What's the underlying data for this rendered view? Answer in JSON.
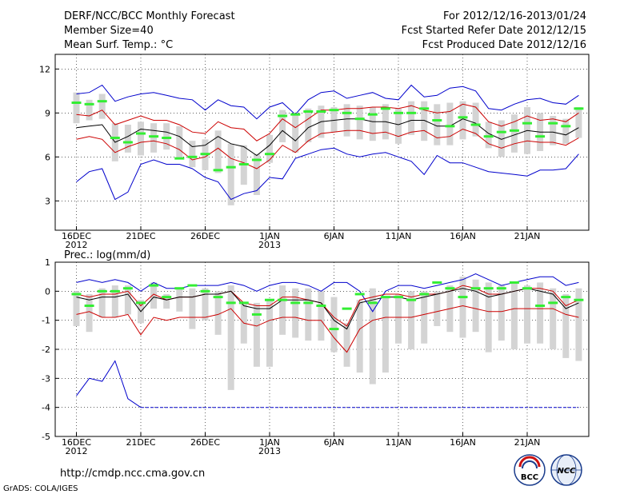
{
  "header": {
    "title": "DERF/NCC/BCC Monthly Forecast",
    "member_size": "Member Size=40",
    "variable": "Mean Surf. Temp.: °C",
    "period": "For 2012/12/16-2013/01/24",
    "started": "Fcst Started Refer Date 2012/12/15",
    "produced": "Fcst Produced Date 2012/12/16"
  },
  "footer": {
    "url": "http://cmdp.ncc.cma.gov.cn",
    "credit": "GrADS: COLA/IGES",
    "logo_bcc": "BCC",
    "logo_ncc": "NCC"
  },
  "colors": {
    "bounds": "#0000cc",
    "spread": "#cc0000",
    "mean": "#000000",
    "median": "#33ee33",
    "box": "#d4d4d4"
  },
  "chart_data": [
    {
      "type": "box-plume",
      "title": "Mean Surf. Temp.: °C",
      "ylim": [
        1,
        13
      ],
      "yticks": [
        3,
        6,
        9,
        12
      ],
      "x_tick_labels": [
        "16DEC",
        "21DEC",
        "26DEC",
        "1JAN",
        "6JAN",
        "11JAN",
        "16JAN",
        "21JAN"
      ],
      "x_tick_sublabels": [
        "2012",
        "",
        "",
        "2013",
        "",
        "",
        "",
        ""
      ],
      "n_days": 40,
      "series": [
        {
          "name": "max",
          "values": [
            10.3,
            10.4,
            10.9,
            9.8,
            10.1,
            10.3,
            10.4,
            10.2,
            10.0,
            9.9,
            9.2,
            9.9,
            9.5,
            9.4,
            8.6,
            9.4,
            9.7,
            8.9,
            9.9,
            10.4,
            10.5,
            10.0,
            10.2,
            10.4,
            10.0,
            9.9,
            10.9,
            10.1,
            10.2,
            10.7,
            10.8,
            10.5,
            9.3,
            9.2,
            9.6,
            9.9,
            10.0,
            9.7,
            9.6,
            10.2
          ]
        },
        {
          "name": "upper",
          "values": [
            8.9,
            8.8,
            9.2,
            8.2,
            8.5,
            8.8,
            8.5,
            8.5,
            8.2,
            7.7,
            7.6,
            8.4,
            8.0,
            7.9,
            7.1,
            7.6,
            8.6,
            8.0,
            8.6,
            9.2,
            9.2,
            9.3,
            9.3,
            9.4,
            9.4,
            9.3,
            9.5,
            9.2,
            9.0,
            9.1,
            9.6,
            9.4,
            8.4,
            8.1,
            8.4,
            8.8,
            8.5,
            8.6,
            8.4,
            9.0
          ]
        },
        {
          "name": "mean",
          "values": [
            8.0,
            8.1,
            8.2,
            7.0,
            7.4,
            7.9,
            7.8,
            7.7,
            7.4,
            6.7,
            6.8,
            7.4,
            6.9,
            6.7,
            6.1,
            6.8,
            7.8,
            7.1,
            8.0,
            8.4,
            8.5,
            8.6,
            8.6,
            8.4,
            8.4,
            8.2,
            8.5,
            8.5,
            8.1,
            8.1,
            8.6,
            8.3,
            7.6,
            7.2,
            7.5,
            7.8,
            7.7,
            7.7,
            7.5,
            8.0
          ]
        },
        {
          "name": "lower",
          "values": [
            7.2,
            7.4,
            7.2,
            6.3,
            6.7,
            7.0,
            7.1,
            6.9,
            6.5,
            5.8,
            6.0,
            6.6,
            5.9,
            5.6,
            5.2,
            5.8,
            6.8,
            6.3,
            7.1,
            7.6,
            7.7,
            7.8,
            7.8,
            7.6,
            7.7,
            7.4,
            7.7,
            7.8,
            7.3,
            7.4,
            7.9,
            7.6,
            6.9,
            6.6,
            6.9,
            7.1,
            7.0,
            7.0,
            6.8,
            7.3
          ]
        },
        {
          "name": "min",
          "values": [
            4.3,
            5.0,
            5.2,
            3.1,
            3.6,
            5.5,
            5.8,
            5.5,
            5.5,
            5.2,
            4.6,
            4.3,
            3.1,
            3.5,
            3.7,
            4.6,
            4.5,
            5.9,
            6.2,
            6.5,
            6.6,
            6.2,
            6.0,
            6.2,
            6.3,
            6.0,
            5.7,
            4.8,
            6.1,
            5.6,
            5.6,
            5.3,
            5.0,
            4.9,
            4.8,
            4.7,
            5.1,
            5.1,
            5.2,
            6.2
          ]
        }
      ],
      "boxes": [
        [
          8.3,
          10.4
        ],
        [
          8.5,
          9.9
        ],
        [
          8.6,
          10.3
        ],
        [
          5.7,
          8.3
        ],
        [
          6.3,
          8.2
        ],
        [
          6.1,
          8.4
        ],
        [
          6.3,
          8.3
        ],
        [
          6.5,
          8.3
        ],
        [
          5.9,
          8.1
        ],
        [
          5.3,
          7.1
        ],
        [
          5.1,
          7.2
        ],
        [
          4.9,
          7.8
        ],
        [
          2.7,
          6.9
        ],
        [
          4.1,
          6.8
        ],
        [
          3.4,
          6.2
        ],
        [
          5.6,
          7.5
        ],
        [
          7.0,
          9.2
        ],
        [
          6.3,
          8.9
        ],
        [
          7.0,
          9.3
        ],
        [
          7.3,
          9.5
        ],
        [
          7.7,
          9.4
        ],
        [
          7.4,
          9.6
        ],
        [
          7.2,
          9.5
        ],
        [
          7.1,
          9.4
        ],
        [
          7.2,
          9.6
        ],
        [
          6.9,
          9.3
        ],
        [
          7.5,
          9.8
        ],
        [
          7.1,
          9.8
        ],
        [
          6.8,
          9.6
        ],
        [
          6.8,
          9.7
        ],
        [
          7.2,
          9.8
        ],
        [
          7.4,
          9.7
        ],
        [
          6.6,
          8.4
        ],
        [
          6.0,
          8.5
        ],
        [
          6.3,
          8.9
        ],
        [
          6.2,
          9.4
        ],
        [
          6.4,
          9.0
        ],
        [
          6.8,
          8.8
        ],
        [
          6.9,
          8.6
        ],
        [
          7.3,
          9.4
        ]
      ],
      "medians": [
        9.7,
        9.6,
        9.8,
        7.3,
        7.0,
        7.6,
        7.4,
        7.3,
        5.9,
        6.0,
        6.2,
        5.1,
        5.3,
        5.5,
        5.8,
        6.2,
        8.8,
        8.9,
        9.1,
        9.1,
        9.2,
        9.0,
        8.6,
        8.9,
        9.3,
        9.0,
        9.0,
        9.3,
        8.5,
        8.1,
        8.7,
        8.2,
        7.4,
        7.7,
        7.8,
        8.3,
        7.4,
        8.3,
        8.1,
        9.3
      ]
    },
    {
      "type": "box-plume",
      "title": "Prec.: log(mm/d)",
      "ylim": [
        -5,
        1
      ],
      "yticks": [
        -5,
        -4,
        -3,
        -2,
        -1,
        0,
        1
      ],
      "x_tick_labels": [
        "16DEC",
        "21DEC",
        "26DEC",
        "1JAN",
        "6JAN",
        "11JAN",
        "16JAN",
        "21JAN"
      ],
      "x_tick_sublabels": [
        "2012",
        "",
        "",
        "2013",
        "",
        "",
        "",
        ""
      ],
      "n_days": 40,
      "series": [
        {
          "name": "max",
          "values": [
            0.3,
            0.4,
            0.3,
            0.4,
            0.3,
            0.0,
            0.3,
            0.1,
            0.1,
            0.2,
            0.2,
            0.2,
            0.3,
            0.2,
            0.0,
            0.2,
            0.3,
            0.3,
            0.2,
            0.0,
            0.3,
            0.3,
            0.0,
            -0.7,
            0.0,
            0.2,
            0.2,
            0.1,
            0.2,
            0.3,
            0.4,
            0.6,
            0.4,
            0.2,
            0.3,
            0.4,
            0.5,
            0.5,
            0.2,
            0.3
          ]
        },
        {
          "name": "upper",
          "values": [
            -0.1,
            -0.2,
            -0.1,
            -0.1,
            0.0,
            -0.5,
            -0.1,
            -0.3,
            -0.2,
            -0.2,
            -0.1,
            -0.1,
            0.0,
            -0.4,
            -0.5,
            -0.5,
            -0.2,
            -0.2,
            -0.3,
            -0.4,
            -0.9,
            -1.2,
            -0.3,
            -0.2,
            -0.1,
            -0.1,
            -0.2,
            -0.1,
            -0.1,
            0.0,
            0.2,
            0.1,
            -0.1,
            -0.1,
            0.0,
            0.1,
            0.1,
            0.0,
            -0.5,
            -0.3
          ]
        },
        {
          "name": "mean",
          "values": [
            -0.2,
            -0.3,
            -0.2,
            -0.2,
            -0.1,
            -0.7,
            -0.2,
            -0.3,
            -0.2,
            -0.2,
            -0.1,
            -0.1,
            0.0,
            -0.5,
            -0.6,
            -0.6,
            -0.3,
            -0.3,
            -0.3,
            -0.4,
            -1.0,
            -1.3,
            -0.4,
            -0.3,
            -0.2,
            -0.2,
            -0.3,
            -0.2,
            -0.1,
            0.0,
            0.1,
            0.0,
            -0.2,
            -0.1,
            0.0,
            0.1,
            0.0,
            -0.1,
            -0.6,
            -0.4
          ]
        },
        {
          "name": "lower",
          "values": [
            -0.8,
            -0.7,
            -0.9,
            -0.9,
            -0.8,
            -1.5,
            -0.9,
            -1.0,
            -0.9,
            -0.9,
            -0.9,
            -0.8,
            -0.6,
            -1.1,
            -1.2,
            -1.0,
            -0.9,
            -0.9,
            -1.0,
            -1.0,
            -1.6,
            -2.1,
            -1.3,
            -1.0,
            -0.9,
            -0.9,
            -0.9,
            -0.8,
            -0.7,
            -0.6,
            -0.5,
            -0.6,
            -0.7,
            -0.7,
            -0.6,
            -0.6,
            -0.6,
            -0.6,
            -0.8,
            -0.9
          ]
        },
        {
          "name": "min",
          "values": [
            -3.6,
            -3.0,
            -3.1,
            -2.4,
            -3.7,
            -4.0,
            -4.0,
            -4.0,
            -4.0,
            -4.0,
            -4.0,
            -4.0,
            -4.0,
            -4.0,
            -4.0,
            -4.0,
            -4.0,
            -4.0,
            -4.0,
            -4.0,
            -4.0,
            -4.0,
            -4.0,
            -4.0,
            -4.0,
            -4.0,
            -4.0,
            -4.0,
            -4.0,
            -4.0,
            -4.0,
            -4.0,
            -4.0,
            -4.0,
            -4.0,
            -4.0,
            -4.0,
            -4.0,
            -4.0,
            -4.0
          ]
        }
      ],
      "boxes": [
        [
          -1.2,
          0.0
        ],
        [
          -1.4,
          -0.1
        ],
        [
          -0.9,
          0.1
        ],
        [
          -0.9,
          0.2
        ],
        [
          -0.8,
          0.2
        ],
        [
          -1.1,
          -0.3
        ],
        [
          -0.6,
          0.3
        ],
        [
          -0.6,
          -0.1
        ],
        [
          -0.7,
          0.1
        ],
        [
          -1.3,
          0.1
        ],
        [
          -1.0,
          0.1
        ],
        [
          -1.5,
          0.0
        ],
        [
          -3.4,
          0.2
        ],
        [
          -1.8,
          -0.4
        ],
        [
          -2.6,
          -0.4
        ],
        [
          -2.6,
          -0.3
        ],
        [
          -1.5,
          0.2
        ],
        [
          -1.6,
          0.1
        ],
        [
          -1.7,
          0.1
        ],
        [
          -1.7,
          0.0
        ],
        [
          -2.1,
          -0.2
        ],
        [
          -2.6,
          -1.1
        ],
        [
          -2.8,
          -0.3
        ],
        [
          -3.2,
          0.1
        ],
        [
          -2.8,
          -0.2
        ],
        [
          -1.8,
          -0.1
        ],
        [
          -2.0,
          0.0
        ],
        [
          -1.8,
          0.0
        ],
        [
          -1.2,
          0.0
        ],
        [
          -1.4,
          0.2
        ],
        [
          -1.6,
          0.5
        ],
        [
          -1.4,
          0.4
        ],
        [
          -2.1,
          0.3
        ],
        [
          -1.7,
          0.2
        ],
        [
          -2.0,
          0.3
        ],
        [
          -1.8,
          0.2
        ],
        [
          -1.8,
          0.3
        ],
        [
          -2.0,
          0.1
        ],
        [
          -2.3,
          -0.1
        ],
        [
          -2.4,
          0.1
        ]
      ],
      "medians": [
        -0.1,
        -0.5,
        0.0,
        0.0,
        0.1,
        -0.4,
        0.2,
        -0.2,
        0.1,
        0.2,
        0.0,
        -0.2,
        -0.4,
        -0.4,
        -0.8,
        -0.3,
        -0.3,
        -0.4,
        -0.4,
        -0.5,
        -1.3,
        -0.6,
        -0.1,
        -0.4,
        -0.2,
        -0.2,
        -0.3,
        -0.1,
        0.3,
        0.1,
        -0.2,
        0.1,
        0.1,
        0.1,
        0.3,
        0.1,
        -0.5,
        -0.4,
        -0.2,
        -0.3
      ]
    }
  ]
}
